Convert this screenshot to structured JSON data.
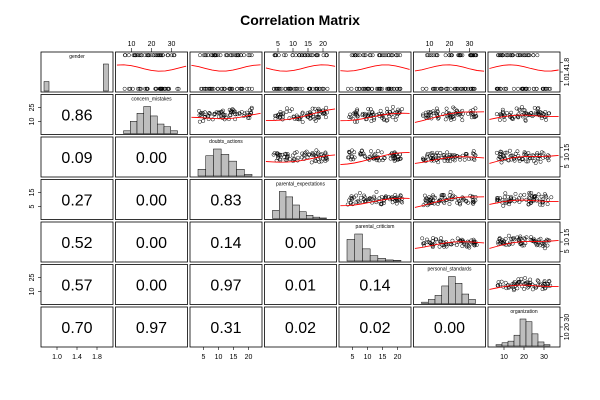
{
  "chart_data": {
    "type": "scatter-matrix",
    "title": "Correlation Matrix",
    "variables": [
      "gender",
      "concern_mistakes",
      "doubts_actions",
      "parental_expectations",
      "parental_criticism",
      "personal_standards",
      "organization"
    ],
    "ranges": [
      [
        1,
        2
      ],
      [
        9,
        36
      ],
      [
        4,
        20
      ],
      [
        5,
        21
      ],
      [
        5,
        20
      ],
      [
        10,
        32
      ],
      [
        10,
        32
      ]
    ],
    "lower_values": [
      [
        "",
        "",
        "",
        "",
        "",
        "",
        ""
      ],
      [
        "0.86",
        "",
        "",
        "",
        "",
        "",
        ""
      ],
      [
        "0.09",
        "0.00",
        "",
        "",
        "",
        "",
        ""
      ],
      [
        "0.27",
        "0.00",
        "0.83",
        "",
        "",
        "",
        ""
      ],
      [
        "0.52",
        "0.00",
        "0.14",
        "0.00",
        "",
        "",
        ""
      ],
      [
        "0.57",
        "0.00",
        "0.97",
        "0.01",
        "0.14",
        "",
        ""
      ],
      [
        "0.70",
        "0.97",
        "0.31",
        "0.02",
        "0.02",
        "0.00",
        ""
      ]
    ],
    "histograms": [
      [
        0.35,
        0,
        0,
        0,
        0,
        0,
        0,
        0,
        0,
        1.0
      ],
      [
        0.1,
        0.45,
        0.75,
        1.0,
        0.65,
        0.35,
        0.25,
        0.1
      ],
      [
        0.25,
        0.75,
        1.0,
        0.8,
        0.55,
        0.25,
        0.06
      ],
      [
        0.3,
        1.0,
        0.8,
        0.5,
        0.25,
        0.12,
        0.05,
        0.02
      ],
      [
        0.8,
        1.0,
        0.45,
        0.2,
        0.1,
        0.04,
        0.02
      ],
      [
        0.05,
        0.15,
        0.3,
        0.65,
        1.0,
        0.75,
        0.35,
        0.15
      ],
      [
        0.05,
        0.12,
        0.18,
        0.4,
        1.0,
        0.9,
        0.45,
        0.15,
        0.05
      ]
    ],
    "top_axes": {
      "1": [
        "10",
        "20",
        "30"
      ],
      "3": [
        "5",
        "10",
        "15",
        "20"
      ],
      "5": [
        "10",
        "20",
        "30"
      ]
    },
    "bottom_axes": {
      "0": [
        "1.0",
        "1.4",
        "1.8"
      ],
      "2": [
        "5",
        "10",
        "15",
        "20"
      ],
      "4": [
        "5",
        "10",
        "15",
        "20"
      ],
      "6": [
        "10",
        "20",
        "30"
      ]
    },
    "left_axes": {
      "1": [
        "10",
        "25"
      ],
      "3": [
        "5",
        "15"
      ],
      "5": [
        "10",
        "25"
      ]
    },
    "right_axes": {
      "0": [
        "1.0",
        "1.4",
        "1.8"
      ],
      "2": [
        "5",
        "10",
        "15"
      ],
      "4": [
        "5",
        "10",
        "15"
      ],
      "6": [
        "10",
        "20",
        "30"
      ]
    },
    "colors": {
      "smooth_line": "#ff0000",
      "histogram_fill": "#bebebe",
      "frame": "#000000"
    }
  }
}
